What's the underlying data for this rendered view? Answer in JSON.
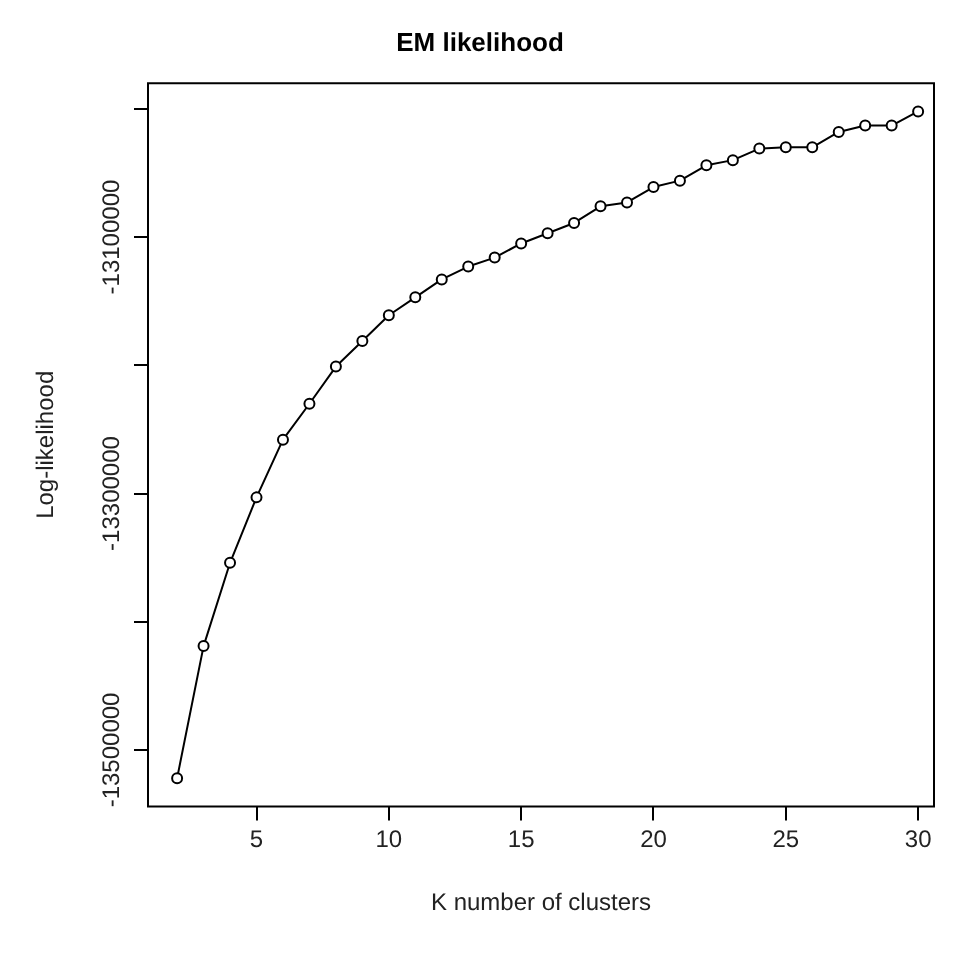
{
  "chart_data": {
    "type": "line",
    "title": "EM likelihood",
    "xlabel": "K number of clusters",
    "ylabel": "Log-likelihood",
    "x": [
      2,
      3,
      4,
      5,
      6,
      7,
      8,
      9,
      10,
      11,
      12,
      13,
      14,
      15,
      16,
      17,
      18,
      19,
      20,
      21,
      22,
      23,
      24,
      25,
      26,
      27,
      28,
      29,
      30
    ],
    "series": [
      {
        "color": "#000000",
        "values": [
          -13522000,
          -13419000,
          -13354000,
          -13303000,
          -13258000,
          -13230000,
          -13201000,
          -13181000,
          -13161000,
          -13147000,
          -13133000,
          -13123000,
          -13116000,
          -13105000,
          -13097000,
          -13089000,
          -13076000,
          -13073000,
          -13061000,
          -13056000,
          -13044000,
          -13040000,
          -13031000,
          -13030000,
          -13030000,
          -13018000,
          -13013000,
          -13013000,
          -13002000
        ]
      }
    ],
    "xlim": [
      0.9,
      30.6
    ],
    "xticks": [
      5,
      10,
      15,
      20,
      25,
      30
    ],
    "ylim": [
      -13544000,
      -12980000
    ],
    "yticks": [
      {
        "value": -13000000,
        "label": null
      },
      -13100000,
      {
        "value": -13200000,
        "label": null
      },
      -13300000,
      {
        "value": -13400000,
        "label": null
      },
      -13500000
    ],
    "grid": false,
    "legend": false,
    "marker": "circle",
    "line_style": "solid"
  }
}
